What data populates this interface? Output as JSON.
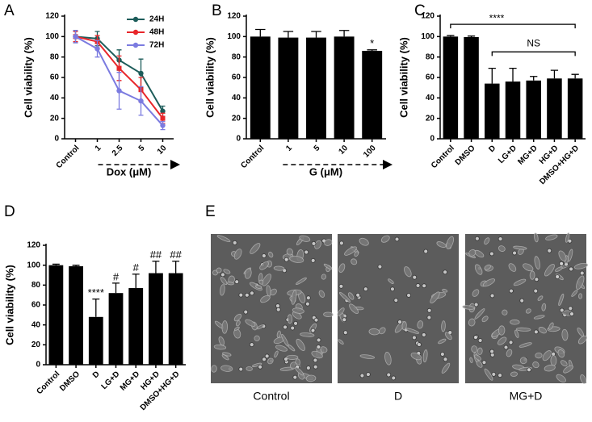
{
  "chart_data": [
    {
      "type": "line",
      "panel": "A",
      "ylabel": "Cell viability (%)",
      "xlabel": "Dox (μM)",
      "categories": [
        "Control",
        "1",
        "2.5",
        "5",
        "10"
      ],
      "series": [
        {
          "name": "24H",
          "color": "#1d5c5a",
          "values": [
            100,
            98,
            77,
            64,
            27
          ],
          "errors": [
            6,
            7,
            10,
            14,
            5
          ]
        },
        {
          "name": "48H",
          "color": "#e8262a",
          "values": [
            100,
            95,
            69,
            48,
            20
          ],
          "errors": [
            5,
            6,
            12,
            12,
            5
          ]
        },
        {
          "name": "72H",
          "color": "#7b7be0",
          "values": [
            100,
            88,
            47,
            37,
            13
          ],
          "errors": [
            6,
            8,
            18,
            14,
            4
          ]
        }
      ],
      "ylim": [
        0,
        120
      ],
      "yticks": [
        0,
        20,
        40,
        60,
        80,
        100,
        120
      ],
      "legend": "upper right"
    },
    {
      "type": "bar",
      "panel": "B",
      "ylabel": "Cell viability (%)",
      "xlabel": "G (μM)",
      "categories": [
        "Control",
        "1",
        "5",
        "10",
        "100"
      ],
      "color": "#000000",
      "values": [
        100,
        99,
        99,
        100,
        86
      ],
      "errors": [
        7,
        6,
        6,
        6,
        1
      ],
      "significance": [
        null,
        null,
        null,
        null,
        "*"
      ],
      "ylim": [
        0,
        120
      ],
      "yticks": [
        0,
        20,
        40,
        60,
        80,
        100,
        120
      ]
    },
    {
      "type": "bar",
      "panel": "C",
      "ylabel": "Cell viability (%)",
      "categories": [
        "Control",
        "DMSO",
        "D",
        "LG+D",
        "MG+D",
        "HG+D",
        "DMSO+HG+D"
      ],
      "color": "#000000",
      "values": [
        100,
        99.5,
        54,
        56,
        57,
        59,
        59
      ],
      "errors": [
        1,
        1,
        15,
        13,
        4,
        8,
        4
      ],
      "annotations": [
        "****",
        "NS"
      ],
      "ylim": [
        0,
        120
      ],
      "yticks": [
        0,
        20,
        40,
        60,
        80,
        100,
        120
      ]
    },
    {
      "type": "bar",
      "panel": "D",
      "ylabel": "Cell viability (%)",
      "categories": [
        "Control",
        "DMSO",
        "D",
        "LG+D",
        "MG+D",
        "HG+D",
        "DMSO+HG+D"
      ],
      "color": "#000000",
      "values": [
        100,
        99,
        48,
        72,
        77,
        92,
        92
      ],
      "errors": [
        1,
        1,
        18,
        10,
        14,
        12,
        12
      ],
      "significance": [
        null,
        null,
        "****",
        "#",
        "#",
        "##",
        "##"
      ],
      "ylim": [
        0,
        120
      ],
      "yticks": [
        0,
        20,
        40,
        60,
        80,
        100,
        120
      ]
    }
  ],
  "image_panel": {
    "label": "E",
    "captions": [
      "Control",
      "D",
      "MG+D"
    ]
  }
}
